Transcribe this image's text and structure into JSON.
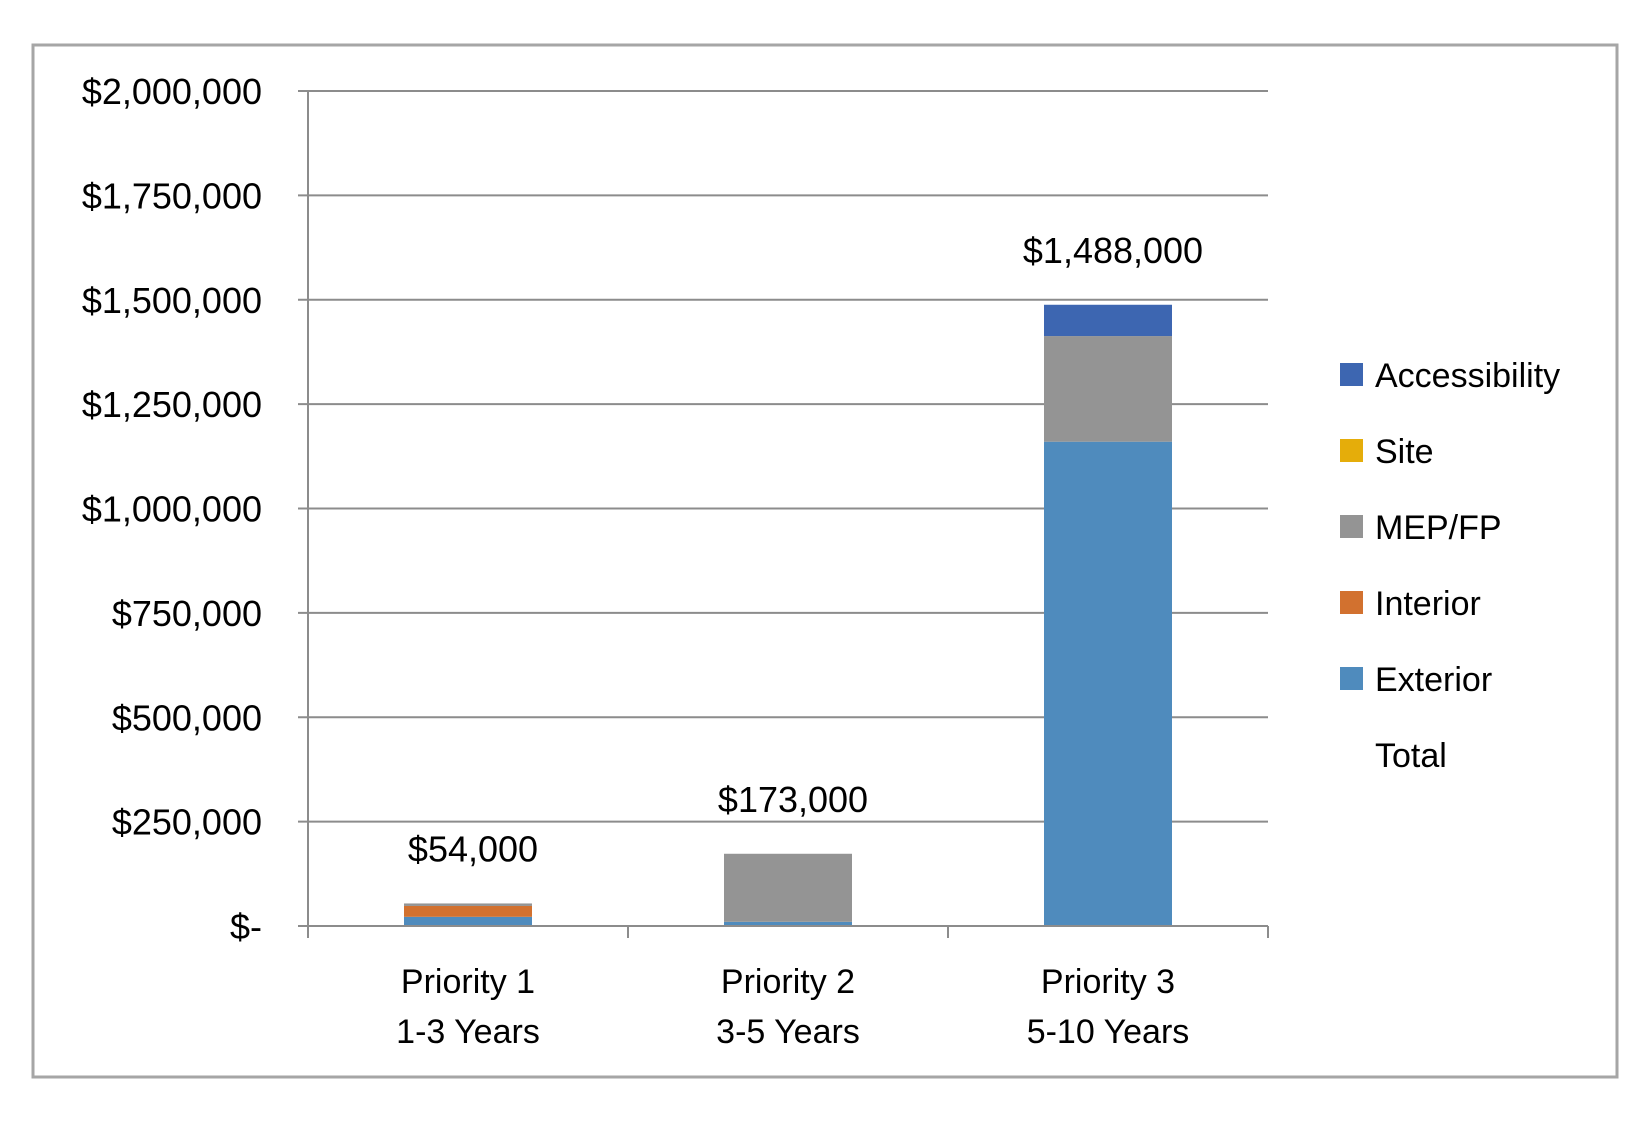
{
  "chart_data": {
    "type": "bar",
    "stacked": true,
    "title": "",
    "xlabel": "",
    "ylabel": "",
    "ylim": [
      0,
      2000000
    ],
    "y_ticks": [
      0,
      250000,
      500000,
      750000,
      1000000,
      1250000,
      1500000,
      1750000,
      2000000
    ],
    "y_tick_labels": [
      "$-",
      "$250,000",
      "$500,000",
      "$750,000",
      "$1,000,000",
      "$1,250,000",
      "$1,500,000",
      "$1,750,000",
      "$2,000,000"
    ],
    "grid": true,
    "legend_position": "right",
    "categories": [
      {
        "line1": "Priority 1",
        "line2": "1-3 Years"
      },
      {
        "line1": "Priority 2",
        "line2": "3-5 Years"
      },
      {
        "line1": "Priority 3",
        "line2": "5-10 Years"
      }
    ],
    "series": [
      {
        "name": "Exterior",
        "color": "#4f8bbd",
        "values": [
          22000,
          10000,
          1160000
        ]
      },
      {
        "name": "Interior",
        "color": "#d2712f",
        "values": [
          26000,
          0,
          0
        ]
      },
      {
        "name": "MEP/FP",
        "color": "#949494",
        "values": [
          6000,
          163000,
          253000
        ]
      },
      {
        "name": "Site",
        "color": "#e5ad0a",
        "values": [
          0,
          0,
          0
        ]
      },
      {
        "name": "Accessibility",
        "color": "#3d66b1",
        "values": [
          0,
          0,
          75000
        ]
      }
    ],
    "totals": {
      "name": "Total",
      "values": [
        54000,
        173000,
        1488000
      ],
      "labels": [
        "$54,000",
        "$173,000",
        "$1,488,000"
      ]
    },
    "legend_order": [
      "Accessibility",
      "Site",
      "MEP/FP",
      "Interior",
      "Exterior",
      "Total"
    ]
  }
}
